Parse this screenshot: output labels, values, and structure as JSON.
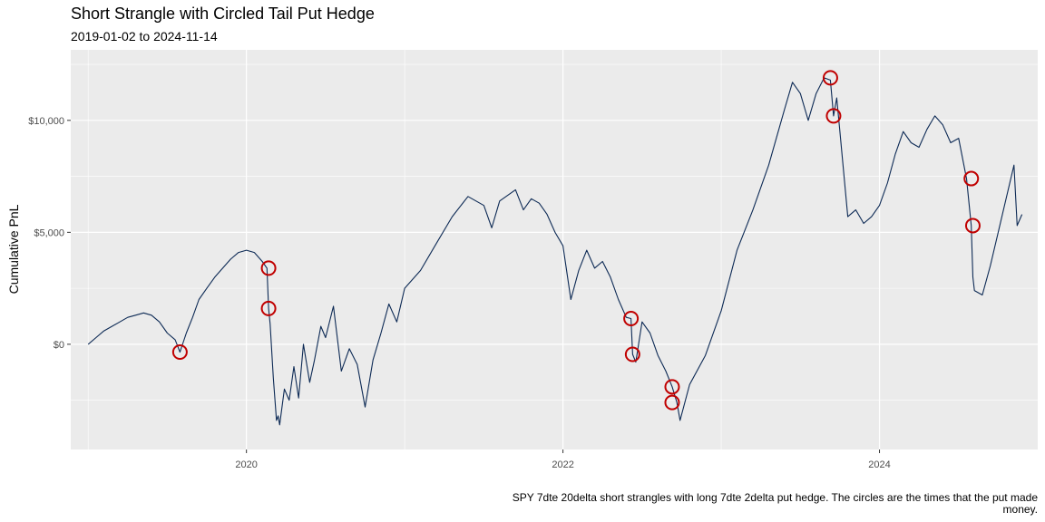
{
  "title": "Short Strangle with Circled Tail Put Hedge",
  "subtitle": "2019-01-02 to 2024-11-14",
  "caption": "SPY 7dte 20delta short strangles with long 7dte 2delta put hedge. The circles are the times that the put made money.",
  "colors": {
    "line": "#0d2a55",
    "circle": "#c00000",
    "panel": "#ebebeb",
    "grid": "#ffffff"
  },
  "chart_data": {
    "type": "line",
    "title": "Short Strangle with Circled Tail Put Hedge",
    "subtitle": "2019-01-02 to 2024-11-14",
    "xlabel": "",
    "ylabel": "Cumulative PnL",
    "xlim": [
      2018.89,
      2025.0
    ],
    "ylim": [
      -4700,
      13150
    ],
    "x_ticks": [
      2020,
      2022,
      2024
    ],
    "x_tick_labels": [
      "2020",
      "2022",
      "2024"
    ],
    "y_ticks": [
      0,
      5000,
      10000
    ],
    "y_tick_labels": [
      "$0",
      "$5,000",
      "$10,000"
    ],
    "grid": true,
    "legend": "none",
    "series": [
      {
        "x": [
          2019.0,
          2019.05,
          2019.1,
          2019.15,
          2019.2,
          2019.25,
          2019.3,
          2019.35,
          2019.4,
          2019.45,
          2019.5,
          2019.55,
          2019.58,
          2019.62,
          2019.66,
          2019.7,
          2019.75,
          2019.8,
          2019.85,
          2019.9,
          2019.95,
          2020.0,
          2020.05,
          2020.1,
          2020.13,
          2020.14,
          2020.15,
          2020.17,
          2020.19,
          2020.2,
          2020.21,
          2020.24,
          2020.27,
          2020.3,
          2020.33,
          2020.36,
          2020.4,
          2020.43,
          2020.47,
          2020.5,
          2020.55,
          2020.6,
          2020.65,
          2020.7,
          2020.75,
          2020.8,
          2020.85,
          2020.9,
          2020.95,
          2021.0,
          2021.1,
          2021.2,
          2021.3,
          2021.4,
          2021.5,
          2021.55,
          2021.6,
          2021.7,
          2021.75,
          2021.8,
          2021.85,
          2021.9,
          2021.95,
          2022.0,
          2022.05,
          2022.1,
          2022.15,
          2022.2,
          2022.25,
          2022.3,
          2022.35,
          2022.4,
          2022.43,
          2022.44,
          2022.46,
          2022.5,
          2022.55,
          2022.6,
          2022.65,
          2022.69,
          2022.72,
          2022.74,
          2022.8,
          2022.9,
          2023.0,
          2023.1,
          2023.2,
          2023.3,
          2023.4,
          2023.45,
          2023.5,
          2023.55,
          2023.6,
          2023.65,
          2023.69,
          2023.71,
          2023.73,
          2023.75,
          2023.8,
          2023.85,
          2023.9,
          2023.95,
          2024.0,
          2024.05,
          2024.1,
          2024.15,
          2024.2,
          2024.25,
          2024.3,
          2024.35,
          2024.4,
          2024.45,
          2024.5,
          2024.55,
          2024.58,
          2024.59,
          2024.6,
          2024.65,
          2024.7,
          2024.75,
          2024.8,
          2024.85,
          2024.87,
          2024.9
        ],
        "y": [
          0,
          300,
          600,
          800,
          1000,
          1200,
          1300,
          1400,
          1300,
          1000,
          500,
          200,
          -350,
          500,
          1200,
          2000,
          2500,
          3000,
          3400,
          3800,
          4100,
          4200,
          4100,
          3700,
          3400,
          1600,
          900,
          -1500,
          -3400,
          -3200,
          -3600,
          -2000,
          -2500,
          -1000,
          -2400,
          0,
          -1700,
          -700,
          800,
          300,
          1700,
          -1200,
          -200,
          -900,
          -2800,
          -700,
          500,
          1800,
          1000,
          2500,
          3300,
          4500,
          5700,
          6600,
          6200,
          5200,
          6400,
          6900,
          6000,
          6500,
          6300,
          5800,
          5000,
          4400,
          2000,
          3300,
          4200,
          3400,
          3700,
          3000,
          2000,
          1200,
          1150,
          -450,
          -800,
          1000,
          500,
          -500,
          -1200,
          -1900,
          -2600,
          -3400,
          -1800,
          -500,
          1500,
          4200,
          6000,
          8000,
          10500,
          11700,
          11200,
          10000,
          11200,
          11900,
          11800,
          10200,
          11000,
          9500,
          5700,
          6000,
          5400,
          5700,
          6200,
          7200,
          8500,
          9500,
          9000,
          8800,
          9600,
          10200,
          9800,
          9000,
          9200,
          7400,
          5300,
          3000,
          2400,
          2200,
          3500,
          5000,
          6500,
          8000,
          5300,
          5800
        ]
      }
    ],
    "hedge_win_points": [
      {
        "x": 2019.58,
        "y": -350
      },
      {
        "x": 2020.14,
        "y": 3400
      },
      {
        "x": 2020.14,
        "y": 1600
      },
      {
        "x": 2022.43,
        "y": 1150
      },
      {
        "x": 2022.44,
        "y": -450
      },
      {
        "x": 2022.69,
        "y": -1900
      },
      {
        "x": 2022.69,
        "y": -2600
      },
      {
        "x": 2023.69,
        "y": 11900
      },
      {
        "x": 2023.71,
        "y": 10200
      },
      {
        "x": 2024.58,
        "y": 7400
      },
      {
        "x": 2024.59,
        "y": 5300
      }
    ]
  }
}
